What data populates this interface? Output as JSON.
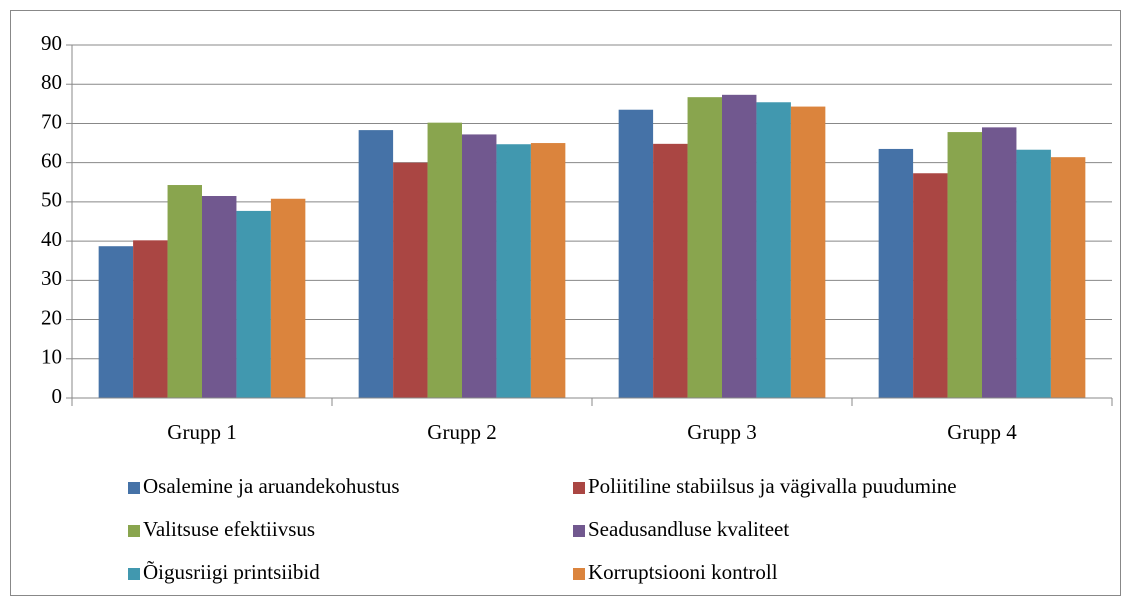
{
  "chart_data": {
    "type": "bar",
    "categories": [
      "Grupp 1",
      "Grupp 2",
      "Grupp 3",
      "Grupp 4"
    ],
    "series": [
      {
        "name": "Osalemine ja aruandekohustus",
        "color": "#4572a7",
        "values": [
          38.7,
          68.3,
          73.5,
          63.5
        ]
      },
      {
        "name": "Poliitiline stabiilsus ja vägivalla puudumine",
        "color": "#aa4643",
        "values": [
          40.2,
          60.0,
          64.8,
          57.3
        ]
      },
      {
        "name": "Valitsuse efektiivsus",
        "color": "#89a54e",
        "values": [
          54.3,
          70.2,
          76.7,
          67.8
        ]
      },
      {
        "name": "Seadusandluse kvaliteet",
        "color": "#71588f",
        "values": [
          51.5,
          67.2,
          77.3,
          69.0
        ]
      },
      {
        "name": "Õigusriigi printsiibid",
        "color": "#4198af",
        "values": [
          47.7,
          64.7,
          75.4,
          63.3
        ]
      },
      {
        "name": "Korruptsiooni kontroll",
        "color": "#db843d",
        "values": [
          50.8,
          65.0,
          74.3,
          61.4
        ]
      }
    ],
    "ylim": [
      0,
      90
    ],
    "yticks": [
      0,
      10,
      20,
      30,
      40,
      50,
      60,
      70,
      80,
      90
    ],
    "grid": true,
    "legend": "bottom"
  }
}
